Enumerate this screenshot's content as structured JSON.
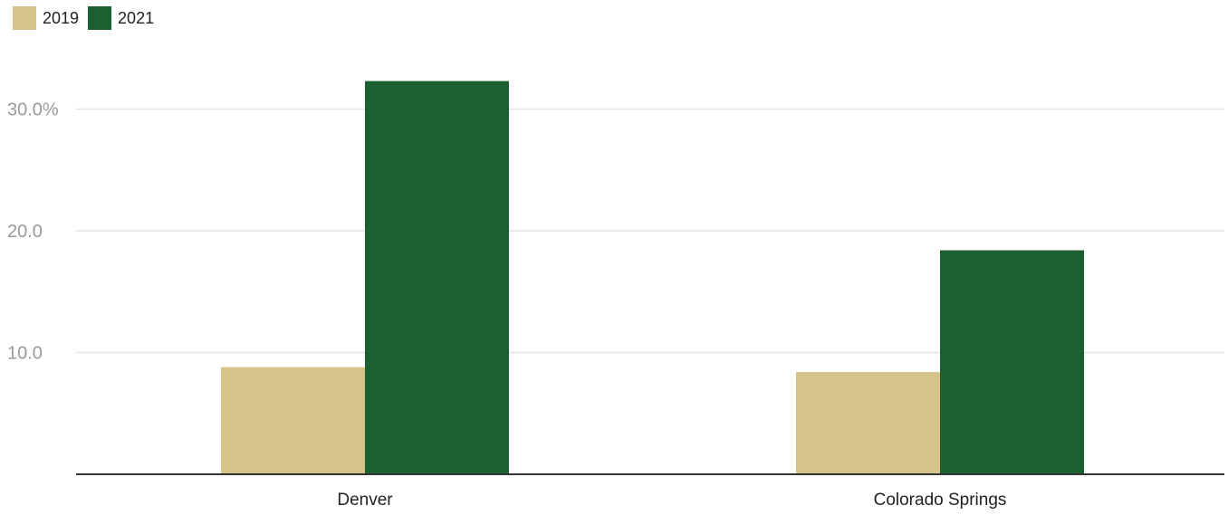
{
  "chart_data": {
    "type": "bar",
    "categories": [
      "Denver",
      "Colorado Springs"
    ],
    "series": [
      {
        "name": "2019",
        "values": [
          8.8,
          8.4
        ],
        "color": "#d4c48a"
      },
      {
        "name": "2021",
        "values": [
          32.3,
          18.4
        ],
        "color": "#1c6032"
      }
    ],
    "ylim": [
      0,
      32.5
    ],
    "yticks": [
      10,
      20,
      30
    ],
    "ytick_labels": [
      "10.0",
      "20.0",
      "30.0%"
    ],
    "xlabel": "",
    "ylabel": "",
    "title": "",
    "grid": true,
    "legend_position": "top-left"
  }
}
